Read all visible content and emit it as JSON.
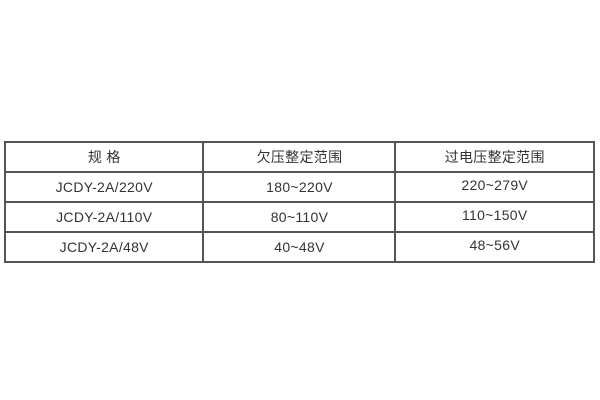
{
  "table": {
    "headers": [
      "规 格",
      "欠压整定范围",
      "过电压整定范围"
    ],
    "rows": [
      [
        "JCDY-2A/220V",
        "180~220V",
        "220~279V"
      ],
      [
        "JCDY-2A/110V",
        "80~110V",
        "110~150V"
      ],
      [
        "JCDY-2A/48V",
        "40~48V",
        "48~56V"
      ]
    ]
  },
  "colors": {
    "background": "#ffffff",
    "border": "#555555",
    "text": "#333333"
  }
}
